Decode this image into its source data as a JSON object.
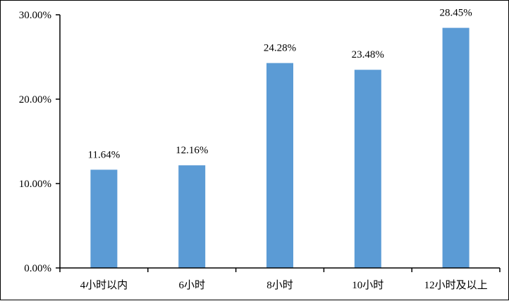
{
  "chart_data": {
    "type": "bar",
    "categories": [
      "4小时以内",
      "6小时",
      "8小时",
      "10小时",
      "12小时及以上"
    ],
    "values": [
      11.64,
      12.16,
      24.28,
      23.48,
      28.45
    ],
    "data_labels": [
      "11.64%",
      "12.16%",
      "24.28%",
      "23.48%",
      "28.45%"
    ],
    "y_ticks": [
      0,
      10,
      20,
      30
    ],
    "y_tick_labels": [
      "0.00%",
      "10.00%",
      "20.00%",
      "30.00%"
    ],
    "ylim": [
      0,
      30
    ],
    "grid": false,
    "legend": "none",
    "bar_color": "#5b9bd5"
  }
}
